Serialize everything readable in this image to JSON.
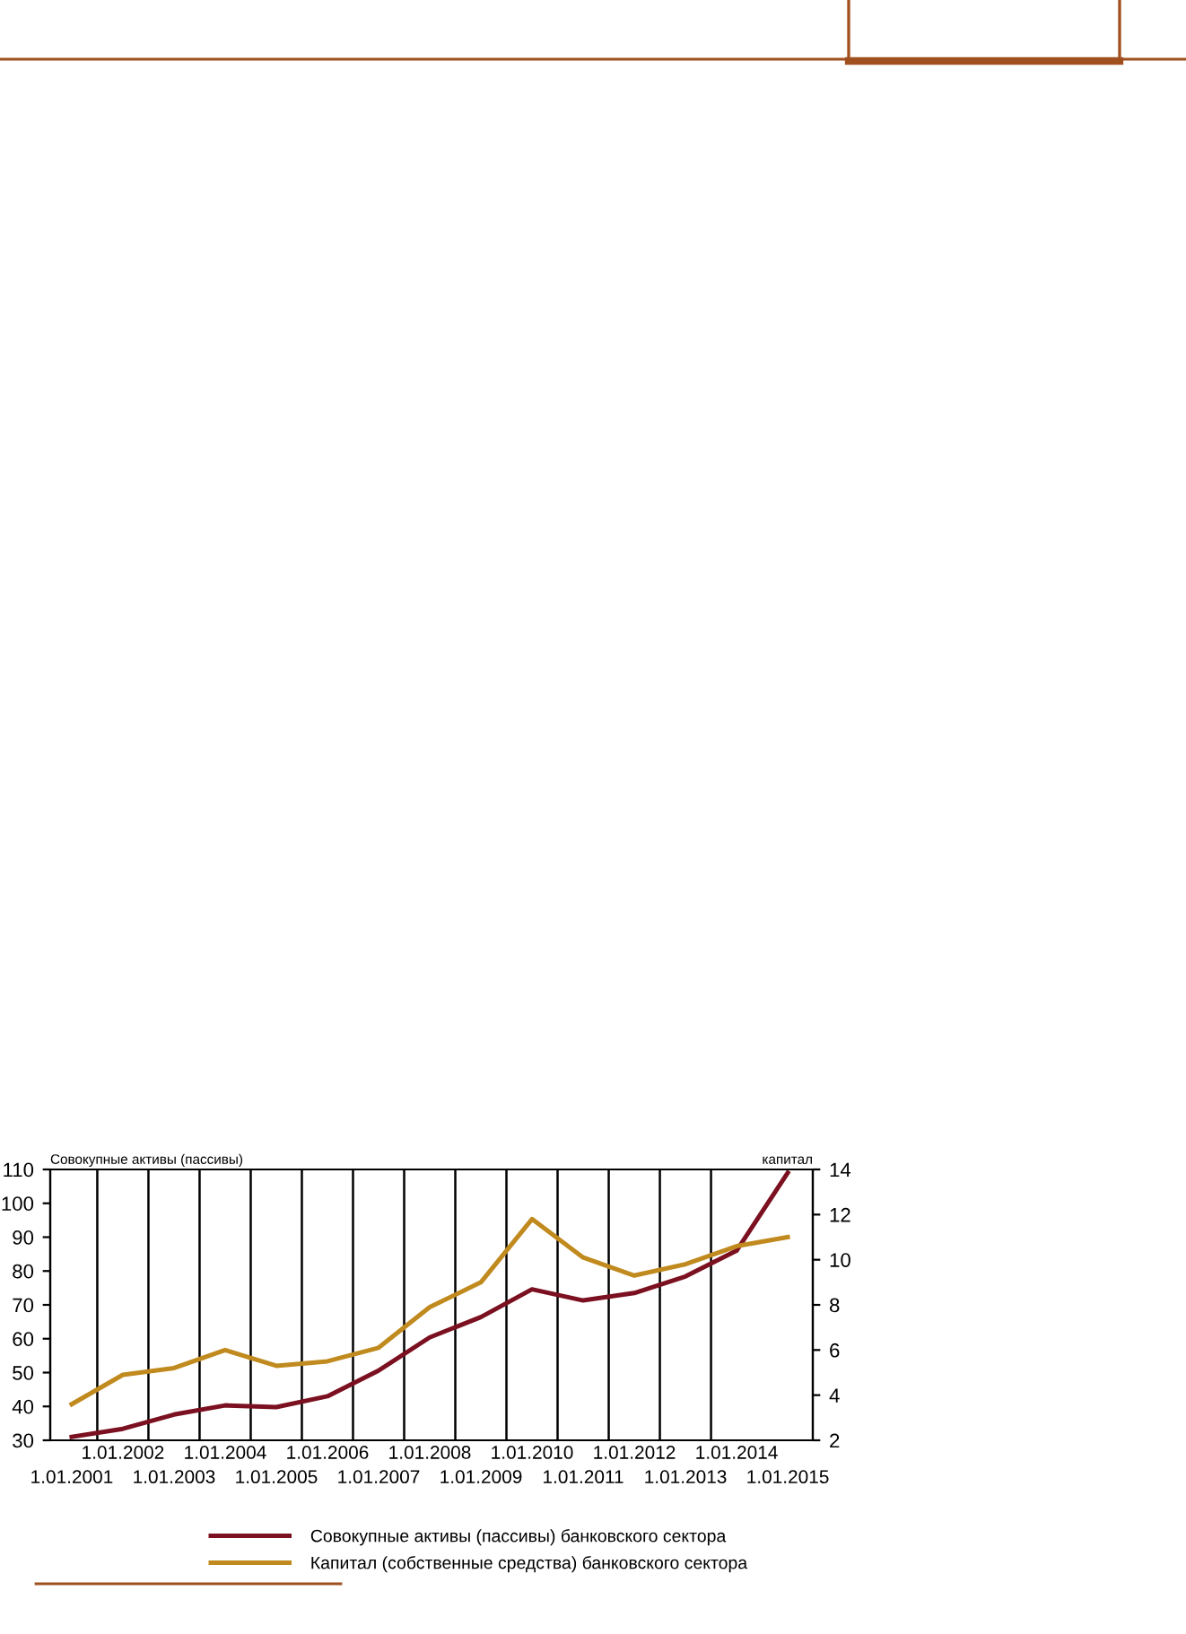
{
  "chart_data": {
    "type": "line",
    "ylabel": "Совокупные активы (пассивы)",
    "y2label": "капитал",
    "categories": [
      "1.01.2001",
      "1.01.2002",
      "1.01.2003",
      "1.01.2004",
      "1.01.2005",
      "1.01.2006",
      "1.01.2007",
      "1.01.2008",
      "1.01.2009",
      "1.01.2010",
      "1.01.2011",
      "1.01.2012",
      "1.01.2013",
      "1.01.2014",
      "1.01.2015"
    ],
    "series": [
      {
        "name": "Совокупные активы (пассивы) банковского сектора",
        "color": "#7b1020",
        "values": [
          31,
          33.4,
          37.6,
          40.3,
          39.8,
          43,
          50.6,
          60.4,
          66.4,
          74.6,
          71.3,
          73.5,
          78.4,
          86,
          109
        ]
      },
      {
        "name": "Капитал (собственные средства) банковского сектора",
        "color": "#c08a1e",
        "axis": "y2",
        "values": [
          3.6,
          4.9,
          5.2,
          6.0,
          5.3,
          5.5,
          6.1,
          7.9,
          9.0,
          11.8,
          10.1,
          9.3,
          9.8,
          10.6,
          11.0
        ]
      }
    ],
    "ylim": [
      30,
      110
    ],
    "yticks": [
      30,
      40,
      50,
      60,
      70,
      80,
      90,
      100,
      110
    ],
    "y2lim": [
      2,
      14
    ],
    "y2ticks": [
      2,
      4,
      6,
      8,
      10,
      12,
      14
    ],
    "grid": "x",
    "legend": "bottom",
    "marker": "none",
    "line_style": "solid"
  }
}
